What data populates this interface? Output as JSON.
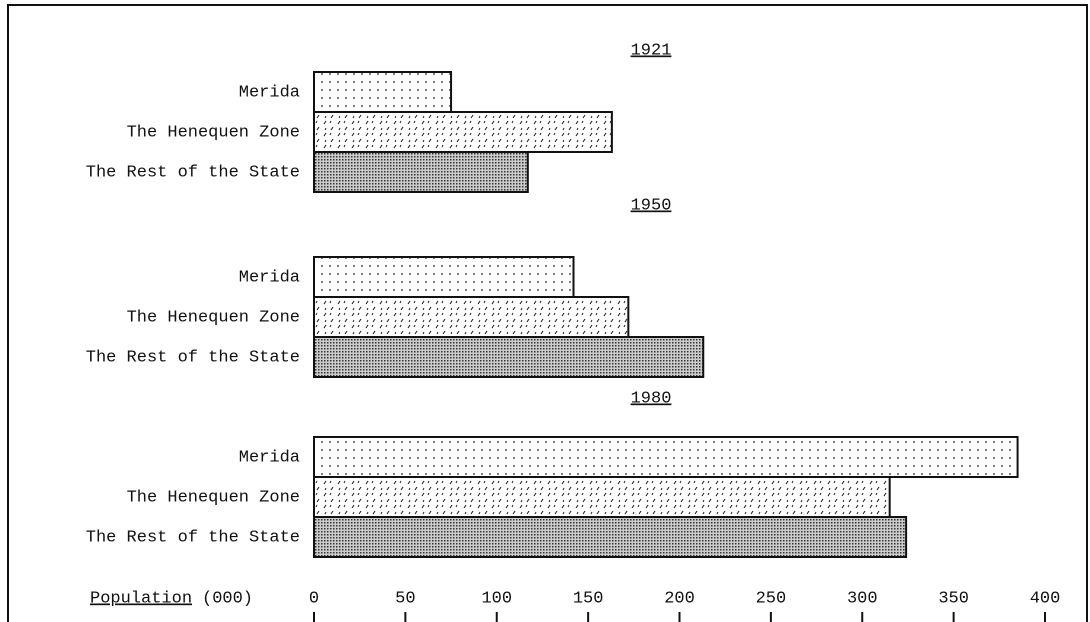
{
  "chart_data": {
    "type": "bar",
    "orientation": "horizontal",
    "groups": [
      "1921",
      "1950",
      "1980"
    ],
    "categories": [
      "Merida",
      "The Henequen Zone",
      "The Rest of the State"
    ],
    "series": [
      {
        "name": "Merida",
        "pattern": "dots",
        "values": [
          75,
          142,
          385
        ]
      },
      {
        "name": "The Henequen Zone",
        "pattern": "dashes",
        "values": [
          163,
          172,
          315
        ]
      },
      {
        "name": "The Rest of the State",
        "pattern": "dense",
        "values": [
          117,
          213,
          324
        ]
      }
    ],
    "xlabel": "Population",
    "xlabel_unit": "(000)",
    "xlim": [
      0,
      400
    ],
    "xticks": [
      0,
      50,
      100,
      150,
      200,
      250,
      300,
      350,
      400
    ]
  }
}
